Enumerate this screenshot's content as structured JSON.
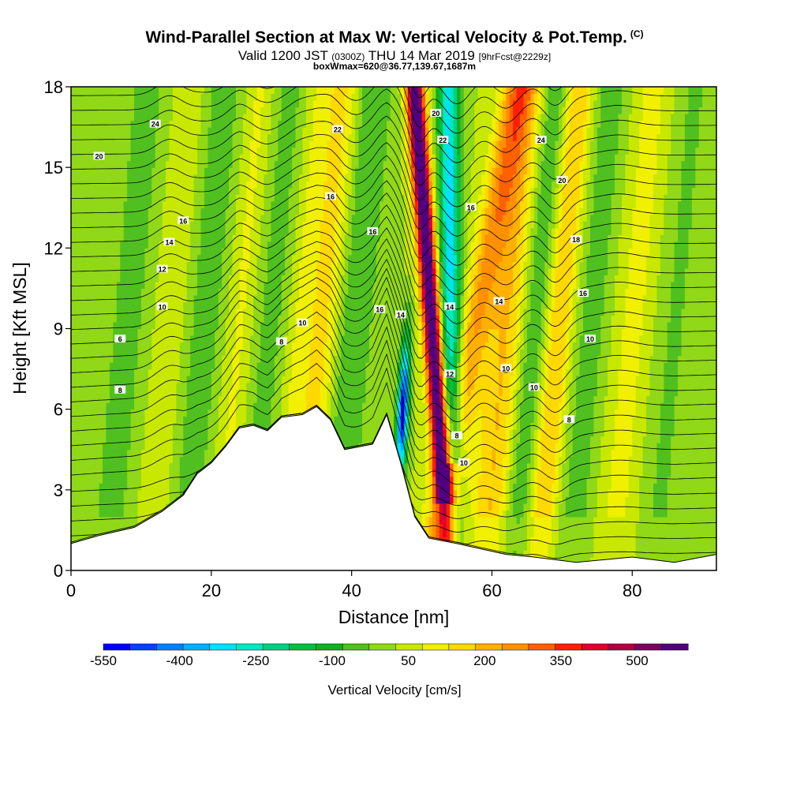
{
  "header": {
    "title_main": "Wind-Parallel Section at Max W: Vertical Velocity & Pot.Temp.",
    "title_mark": "(C)",
    "valid_prefix": "Valid 1200 JST",
    "valid_utc": "(0300Z)",
    "valid_date": "THU 14 Mar 2019",
    "valid_fcst": "[9hrFcst@2229z]",
    "box_info": "boxWmax=620@36.77,139.67,1687m"
  },
  "chart_data": {
    "type": "heatmap",
    "title": "Wind-Parallel Section at Max W: Vertical Velocity & Pot.Temp.",
    "xlabel": "Distance [nm]",
    "ylabel": "Height [Kft MSL]",
    "xlim": [
      0,
      92
    ],
    "ylim": [
      0,
      18
    ],
    "x_ticks": [
      "0",
      "20",
      "40",
      "60",
      "80"
    ],
    "y_ticks": [
      "0",
      "3",
      "6",
      "9",
      "12",
      "15",
      "18"
    ],
    "colorbar": {
      "label": "Vertical Velocity [cm/s]",
      "tick_labels": [
        "-550",
        "-400",
        "-250",
        "-100",
        "50",
        "200",
        "350",
        "500"
      ],
      "tick_values": [
        -550,
        -400,
        -250,
        -100,
        50,
        200,
        350,
        500
      ],
      "range": [
        -550,
        600
      ],
      "colors": [
        "#0000ff",
        "#0040ff",
        "#0080ff",
        "#00b0ff",
        "#00e0ff",
        "#00e8c0",
        "#00d080",
        "#00c040",
        "#10b020",
        "#50c020",
        "#90d818",
        "#c8e800",
        "#f0f000",
        "#ffd800",
        "#ffb000",
        "#ff9000",
        "#ff6000",
        "#ff2000",
        "#e00030",
        "#b00040",
        "#800060",
        "#500080"
      ]
    },
    "series": [
      {
        "name": "Vertical Velocity [cm/s]",
        "kind": "filled contours"
      },
      {
        "name": "Pot.Temp.",
        "kind": "line contours"
      }
    ],
    "contour_labels": [
      "6",
      "8",
      "10",
      "12",
      "14",
      "16",
      "18",
      "20",
      "22",
      "24"
    ],
    "terrain_height_kft": [
      [
        0,
        1.0
      ],
      [
        4,
        1.3
      ],
      [
        9,
        1.6
      ],
      [
        13,
        2.2
      ],
      [
        16,
        2.8
      ],
      [
        18,
        3.6
      ],
      [
        20,
        4.0
      ],
      [
        22,
        4.6
      ],
      [
        24,
        5.3
      ],
      [
        26,
        5.4
      ],
      [
        28,
        5.2
      ],
      [
        30,
        5.7
      ],
      [
        33,
        5.8
      ],
      [
        35,
        6.1
      ],
      [
        37,
        5.6
      ],
      [
        39,
        4.5
      ],
      [
        43,
        4.7
      ],
      [
        45,
        5.8
      ],
      [
        47,
        4.0
      ],
      [
        48,
        3.0
      ],
      [
        49,
        2.0
      ],
      [
        51,
        1.2
      ],
      [
        55,
        1.0
      ],
      [
        62,
        0.6
      ],
      [
        66,
        0.5
      ],
      [
        72,
        0.3
      ],
      [
        80,
        0.5
      ],
      [
        86,
        0.3
      ],
      [
        92,
        0.6
      ]
    ],
    "grid": false
  }
}
